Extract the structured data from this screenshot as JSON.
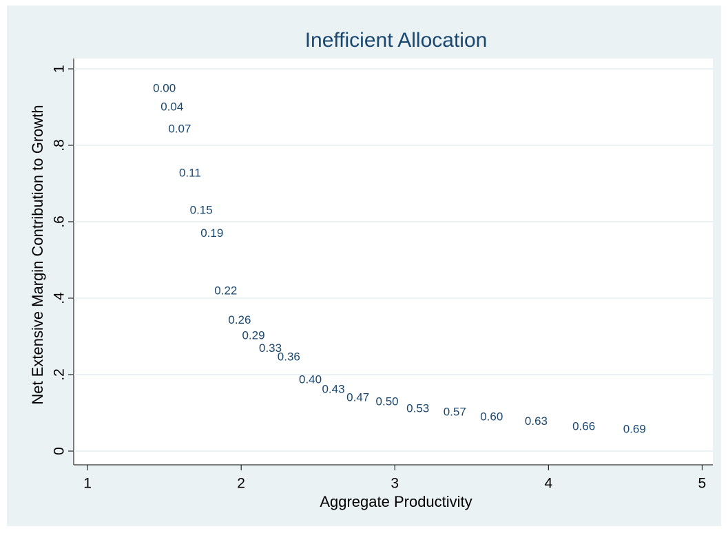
{
  "chart_data": {
    "type": "scatter",
    "title": "Inefficient Allocation",
    "x_label": "Aggregate Productivity",
    "y_label": "Net Extensive Margin Contribution to Growth",
    "series": [
      {
        "color": "#1a476f",
        "x": [
          1.39,
          1.44,
          1.49,
          1.56,
          1.63,
          1.7,
          1.79,
          1.88,
          1.97,
          2.08,
          2.2,
          2.34,
          2.49,
          2.65,
          2.84,
          3.04,
          3.28,
          3.52,
          3.81,
          4.12,
          4.45
        ],
        "values": [
          0.948,
          0.899,
          0.841,
          0.726,
          0.629,
          0.568,
          0.418,
          0.341,
          0.301,
          0.268,
          0.245,
          0.186,
          0.16,
          0.139,
          0.128,
          0.11,
          0.101,
          0.088,
          0.077,
          0.063,
          0.056
        ],
        "labels": [
          "0.00",
          "0.04",
          "0.07",
          "0.11",
          "0.15",
          "0.19",
          "0.22",
          "0.26",
          "0.29",
          "0.33",
          "0.36",
          "0.40",
          "0.43",
          "0.47",
          "0.50",
          "0.53",
          "0.57",
          "0.60",
          "0.63",
          "0.66",
          "0.69"
        ]
      }
    ],
    "xlim": [
      0.91,
      5.07
    ],
    "xticks": [
      1,
      2,
      3,
      4,
      5
    ],
    "ylim": [
      -0.036,
      1.027
    ],
    "yticks": [
      0,
      {
        "value": 0.2,
        "label": ".2"
      },
      {
        "value": 0.4,
        "label": ".4"
      },
      {
        "value": 0.6,
        "label": ".6"
      },
      {
        "value": 0.8,
        "label": ".8"
      },
      1
    ],
    "grid": true
  }
}
